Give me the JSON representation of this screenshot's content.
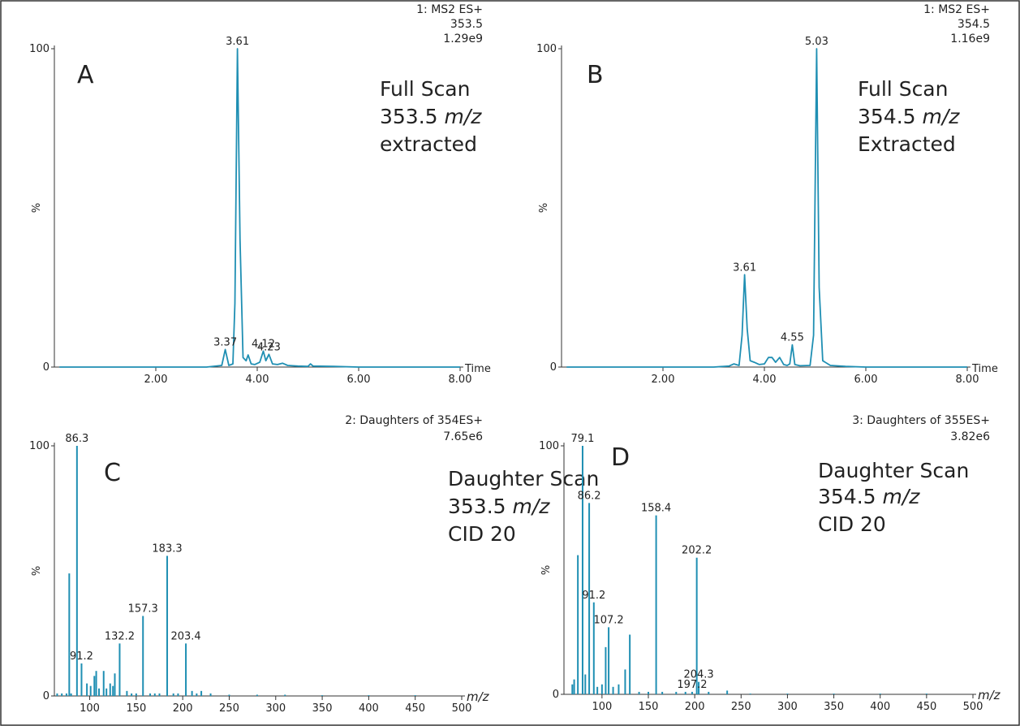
{
  "chart_data": [
    {
      "type": "line",
      "panel": "A",
      "header": [
        "1: MS2 ES+",
        "353.5",
        "1.29e9"
      ],
      "note": [
        {
          "text": "Full Scan"
        },
        {
          "text": "353.5",
          "italic": "m/z"
        },
        {
          "text": "extracted"
        }
      ],
      "xlabel": "Time",
      "xlabel_style": "normal",
      "ylabel": "%",
      "color": "#1f8fb3",
      "x": [
        0.1,
        1,
        2,
        3,
        3.3,
        3.37,
        3.44,
        3.52,
        3.56,
        3.61,
        3.66,
        3.72,
        3.78,
        3.82,
        3.88,
        3.95,
        4.05,
        4.12,
        4.17,
        4.23,
        4.3,
        4.4,
        4.5,
        4.6,
        4.8,
        5.0,
        5.05,
        5.1,
        5.5,
        6,
        7,
        8
      ],
      "values": [
        0,
        0,
        0,
        0,
        0.5,
        5.5,
        0.5,
        1,
        20,
        100,
        40,
        3,
        2,
        3.8,
        1,
        0.8,
        1.5,
        5,
        2,
        4,
        1,
        0.8,
        1.2,
        0.5,
        0.3,
        0.2,
        1,
        0.3,
        0.2,
        0,
        0,
        0
      ],
      "peaks": [
        {
          "x": 3.37,
          "y": 5.5
        },
        {
          "x": 3.61,
          "y": 100
        },
        {
          "x": 4.12,
          "y": 5
        },
        {
          "x": 4.23,
          "y": 4
        }
      ],
      "xlim": [
        0,
        8
      ],
      "xticks": [
        {
          "value": 2,
          "label": "2.00"
        },
        {
          "value": 4,
          "label": "4.00"
        },
        {
          "value": 6,
          "label": "6.00"
        },
        {
          "value": 8,
          "label": "8.00"
        }
      ],
      "ylim": [
        0,
        100
      ],
      "yticks": [
        0,
        100
      ]
    },
    {
      "type": "line",
      "panel": "B",
      "header": [
        "1: MS2 ES+",
        "354.5",
        "1.16e9"
      ],
      "note": [
        {
          "text": "Full  Scan"
        },
        {
          "text": "354.5",
          "italic": "m/z"
        },
        {
          "text": "Extracted"
        }
      ],
      "xlabel": "Time",
      "xlabel_style": "normal",
      "ylabel": "%",
      "color": "#1f8fb3",
      "x": [
        0.1,
        1,
        2,
        3,
        3.3,
        3.4,
        3.5,
        3.56,
        3.61,
        3.66,
        3.72,
        3.8,
        3.9,
        4.0,
        4.08,
        4.15,
        4.22,
        4.3,
        4.38,
        4.45,
        4.5,
        4.55,
        4.6,
        4.7,
        4.9,
        4.97,
        5.03,
        5.08,
        5.15,
        5.3,
        5.6,
        6,
        7,
        8
      ],
      "values": [
        0,
        0,
        0,
        0,
        0.3,
        1,
        0.5,
        10,
        29,
        12,
        2,
        1.5,
        0.8,
        1,
        3,
        3,
        1.5,
        3,
        0.8,
        0.5,
        1,
        7,
        0.8,
        0.4,
        0.5,
        10,
        100,
        25,
        2,
        0.5,
        0.2,
        0,
        0,
        0
      ],
      "peaks": [
        {
          "x": 3.61,
          "y": 29
        },
        {
          "x": 4.55,
          "y": 7
        },
        {
          "x": 5.03,
          "y": 100
        }
      ],
      "xlim": [
        0,
        8
      ],
      "xticks": [
        {
          "value": 2,
          "label": "2.00"
        },
        {
          "value": 4,
          "label": "4.00"
        },
        {
          "value": 6,
          "label": "6.00"
        },
        {
          "value": 8,
          "label": "8.00"
        }
      ],
      "ylim": [
        0,
        100
      ],
      "yticks": [
        0,
        100
      ]
    },
    {
      "type": "stem",
      "panel": "C",
      "header": [
        "2: Daughters of 354ES+",
        "7.65e6"
      ],
      "note": [
        {
          "text": "Daughter Scan"
        },
        {
          "text": "353.5",
          "italic": "m/z"
        },
        {
          "text": "CID 20"
        }
      ],
      "xlabel": "m/z",
      "xlabel_style": "italic",
      "ylabel": "%",
      "color": "#1f8fb3",
      "x": [
        65,
        70,
        75,
        78,
        80,
        86.3,
        91.2,
        97,
        101,
        105,
        107,
        110,
        115,
        118,
        122,
        125,
        127,
        132.2,
        140,
        145,
        150,
        157.3,
        165,
        170,
        175,
        183.3,
        190,
        195,
        203.4,
        210,
        215,
        220,
        230,
        250,
        280,
        310,
        350,
        400,
        450
      ],
      "values": [
        1,
        1,
        1,
        49,
        1,
        100,
        13,
        5,
        4,
        8,
        10,
        3,
        10,
        3,
        5,
        4,
        9,
        21,
        2,
        1,
        1,
        32,
        1,
        1,
        1,
        56,
        1,
        1,
        21,
        2,
        1,
        2,
        1,
        0.5,
        0.5,
        0.5,
        0.3,
        0.3,
        0.3
      ],
      "peaks": [
        {
          "x": 86.3,
          "y": 100
        },
        {
          "x": 91.2,
          "y": 13
        },
        {
          "x": 132.2,
          "y": 21
        },
        {
          "x": 157.3,
          "y": 32
        },
        {
          "x": 183.3,
          "y": 56
        },
        {
          "x": 203.4,
          "y": 21
        }
      ],
      "xlim": [
        62,
        500
      ],
      "xticks": [
        100,
        150,
        200,
        250,
        300,
        350,
        400,
        450,
        500
      ],
      "ylim": [
        0,
        100
      ],
      "yticks": [
        0,
        100
      ]
    },
    {
      "type": "stem",
      "panel": "D",
      "header": [
        "3: Daughters of 355ES+",
        "3.82e6"
      ],
      "note": [
        {
          "text": "Daughter Scan"
        },
        {
          "text": "354.5",
          "italic": "m/z"
        },
        {
          "text": "CID 20"
        }
      ],
      "xlabel": "m/z",
      "xlabel_style": "italic",
      "ylabel": "%",
      "color": "#1f8fb3",
      "x": [
        68,
        70,
        74,
        79.1,
        82,
        86.2,
        91.2,
        95,
        100,
        104,
        107.2,
        112,
        118,
        125,
        130,
        140,
        150,
        158.4,
        165,
        180,
        190,
        197.2,
        202.2,
        204.3,
        215,
        235,
        260,
        300,
        350,
        400,
        450
      ],
      "values": [
        4,
        6,
        56,
        100,
        8,
        77,
        37,
        3,
        4,
        19,
        27,
        3,
        4,
        10,
        24,
        1,
        1,
        72,
        1,
        1,
        1,
        1,
        55,
        5,
        1,
        1.5,
        0.3,
        0.3,
        0.3,
        0.3,
        0.3
      ],
      "peaks": [
        {
          "x": 79.1,
          "y": 100
        },
        {
          "x": 86.2,
          "y": 77
        },
        {
          "x": 91.2,
          "y": 37
        },
        {
          "x": 107.2,
          "y": 27
        },
        {
          "x": 158.4,
          "y": 72
        },
        {
          "x": 197.2,
          "y": 1
        },
        {
          "x": 202.2,
          "y": 55
        },
        {
          "x": 204.3,
          "y": 5
        }
      ],
      "xlim": [
        59,
        500
      ],
      "xticks": [
        100,
        150,
        200,
        250,
        300,
        350,
        400,
        450,
        500
      ],
      "ylim": [
        0,
        100
      ],
      "yticks": [
        0,
        100
      ]
    }
  ]
}
